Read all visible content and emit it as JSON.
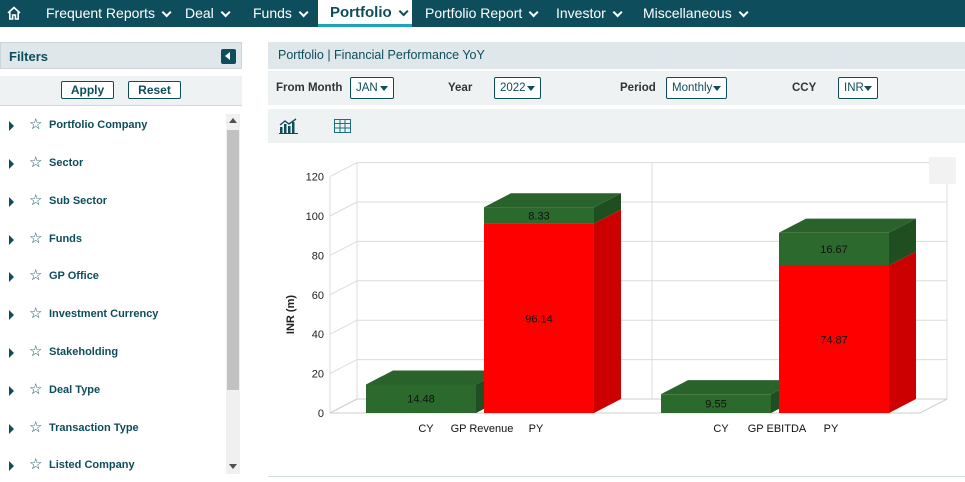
{
  "nav": {
    "items": [
      {
        "label": "Frequent Reports",
        "active": false
      },
      {
        "label": "Deal",
        "active": false
      },
      {
        "label": "Funds",
        "active": false
      },
      {
        "label": "Portfolio",
        "active": true
      },
      {
        "label": "Portfolio Report",
        "active": false
      },
      {
        "label": "Investor",
        "active": false
      },
      {
        "label": "Miscellaneous",
        "active": false
      }
    ]
  },
  "sidebar": {
    "title": "Filters",
    "apply_label": "Apply",
    "reset_label": "Reset",
    "items": [
      {
        "label": "Portfolio Company"
      },
      {
        "label": "Sector"
      },
      {
        "label": "Sub Sector"
      },
      {
        "label": "Funds"
      },
      {
        "label": "GP Office"
      },
      {
        "label": "Investment Currency"
      },
      {
        "label": "Stakeholding"
      },
      {
        "label": "Deal Type"
      },
      {
        "label": "Transaction Type"
      },
      {
        "label": "Listed Company"
      }
    ]
  },
  "main": {
    "title": "Portfolio | Financial Performance YoY",
    "controls": {
      "from_month_label": "From Month",
      "from_month_value": "JAN",
      "year_label": "Year",
      "year_value": "2022",
      "period_label": "Period",
      "period_value": "Monthly",
      "ccy_label": "CCY",
      "ccy_value": "INR"
    }
  },
  "colors": {
    "nav_bg": "#0e4d5b",
    "accent": "#1fa3b9",
    "green": "#2d6a2d",
    "red": "#ff0000"
  },
  "chart_data": {
    "type": "bar",
    "stacked": true,
    "three_d": true,
    "ylabel": "INR (m)",
    "ylim": [
      0,
      120
    ],
    "yticks": [
      0,
      20,
      40,
      60,
      80,
      100,
      120
    ],
    "grid": true,
    "groups": [
      {
        "name": "GP Revenue",
        "bars": [
          {
            "label": "CY",
            "segments": [
              {
                "color": "green",
                "value": 14.48
              }
            ]
          },
          {
            "label": "PY",
            "segments": [
              {
                "color": "red",
                "value": 96.14
              },
              {
                "color": "green",
                "value": 8.33
              }
            ]
          }
        ]
      },
      {
        "name": "GP EBITDA",
        "bars": [
          {
            "label": "CY",
            "segments": [
              {
                "color": "green",
                "value": 9.55
              }
            ]
          },
          {
            "label": "PY",
            "segments": [
              {
                "color": "red",
                "value": 74.87
              },
              {
                "color": "green",
                "value": 16.67
              }
            ]
          }
        ]
      }
    ]
  }
}
